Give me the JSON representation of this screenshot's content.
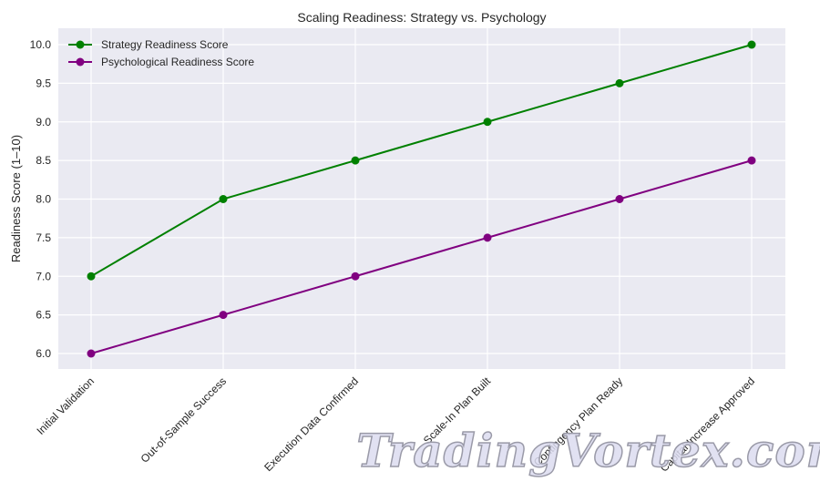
{
  "chart_data": {
    "type": "line",
    "title": "Scaling Readiness: Strategy vs. Psychology",
    "xlabel": "",
    "ylabel": "Readiness Score (1–10)",
    "categories": [
      "Initial Validation",
      "Out-of-Sample Success",
      "Execution Data Confirmed",
      "Scale-In Plan Built",
      "Contingency Plan Ready",
      "Capital Increase Approved"
    ],
    "series": [
      {
        "name": "Strategy Readiness Score",
        "color": "#008000",
        "marker": "circle",
        "values": [
          7.0,
          8.0,
          8.5,
          9.0,
          9.5,
          10.0
        ]
      },
      {
        "name": "Psychological Readiness Score",
        "color": "#800080",
        "marker": "circle",
        "values": [
          6.0,
          6.5,
          7.0,
          7.5,
          8.0,
          8.5
        ]
      }
    ],
    "yticks": [
      "6.0",
      "6.5",
      "7.0",
      "7.5",
      "8.0",
      "8.5",
      "9.0",
      "9.5",
      "10.0"
    ],
    "ylim": [
      5.8,
      10.2
    ],
    "grid": true,
    "legend_position": "upper left",
    "background": "#eaeaf2",
    "watermark": "TradingVortex.com"
  }
}
